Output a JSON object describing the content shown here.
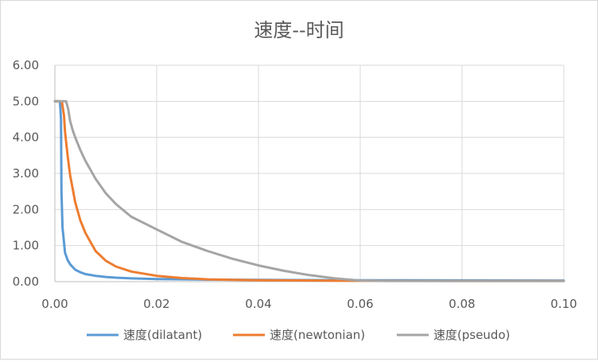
{
  "chart_data": {
    "type": "line",
    "title": "速度--时间",
    "xlabel": "",
    "ylabel": "",
    "xlim": [
      0,
      0.1
    ],
    "ylim": [
      0,
      6
    ],
    "x_ticks": [
      "0.00",
      "0.02",
      "0.04",
      "0.06",
      "0.08",
      "0.10"
    ],
    "y_ticks": [
      "0.00",
      "1.00",
      "2.00",
      "3.00",
      "4.00",
      "5.00",
      "6.00"
    ],
    "grid": true,
    "legend_position": "bottom",
    "series": [
      {
        "name": "速度(dilatant)",
        "color": "#5b9bd5",
        "x": [
          0,
          0.001,
          0.0012,
          0.0013,
          0.0015,
          0.002,
          0.0025,
          0.003,
          0.004,
          0.005,
          0.006,
          0.008,
          0.01,
          0.012,
          0.015,
          0.02,
          0.03,
          0.04,
          0.06,
          0.08,
          0.1
        ],
        "y": [
          5.0,
          5.0,
          4.5,
          2.5,
          1.5,
          0.8,
          0.6,
          0.48,
          0.33,
          0.26,
          0.21,
          0.16,
          0.13,
          0.11,
          0.09,
          0.07,
          0.055,
          0.048,
          0.04,
          0.035,
          0.03
        ]
      },
      {
        "name": "速度(newtonian)",
        "color": "#ed7d31",
        "x": [
          0,
          0.001,
          0.0014,
          0.0018,
          0.002,
          0.0025,
          0.003,
          0.004,
          0.005,
          0.006,
          0.008,
          0.01,
          0.012,
          0.015,
          0.02,
          0.025,
          0.03,
          0.035,
          0.04,
          0.05,
          0.06,
          0.08,
          0.1
        ],
        "y": [
          5.0,
          5.0,
          4.97,
          4.6,
          4.15,
          3.5,
          2.95,
          2.2,
          1.7,
          1.35,
          0.85,
          0.58,
          0.42,
          0.28,
          0.16,
          0.1,
          0.065,
          0.05,
          0.04,
          0.03,
          0.025,
          0.02,
          0.02
        ]
      },
      {
        "name": "速度(pseudo)",
        "color": "#a5a5a5",
        "x": [
          0,
          0.0015,
          0.0022,
          0.0026,
          0.003,
          0.0035,
          0.004,
          0.005,
          0.006,
          0.008,
          0.01,
          0.012,
          0.015,
          0.02,
          0.025,
          0.03,
          0.035,
          0.04,
          0.045,
          0.05,
          0.055,
          0.06,
          0.065,
          0.07,
          0.08,
          0.09,
          0.1
        ],
        "y": [
          5.0,
          5.0,
          5.0,
          4.8,
          4.45,
          4.2,
          4.0,
          3.65,
          3.35,
          2.85,
          2.45,
          2.15,
          1.8,
          1.45,
          1.1,
          0.85,
          0.63,
          0.45,
          0.3,
          0.18,
          0.09,
          0.03,
          0.02,
          0.02,
          0.02,
          0.02,
          0.02
        ]
      }
    ]
  }
}
